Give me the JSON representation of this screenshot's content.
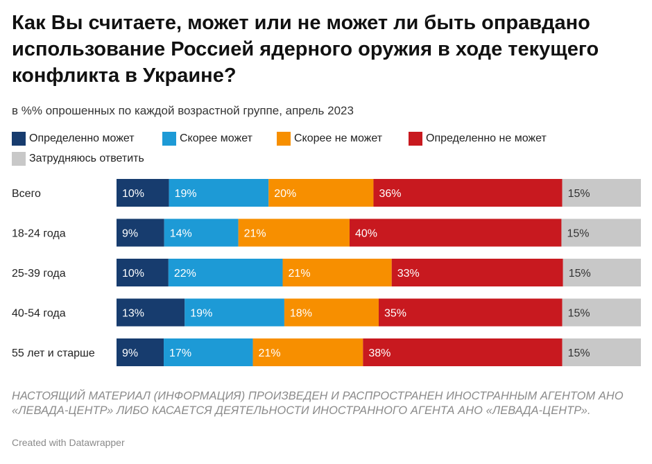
{
  "header": {
    "title": "Как Вы считаете, может или не может ли быть оправдано использование Россией ядерного оружия в ходе текущего конфликта в Украине?",
    "subtitle": "в %% опрошенных по каждой возрастной группе, апрель 2023"
  },
  "footer": {
    "notes": "НАСТОЯЩИЙ МАТЕРИАЛ (ИНФОРМАЦИЯ) ПРОИЗВЕДЕН И РАСПРОСТРАНЕН ИНОСТРАННЫМ АГЕНТОМ АНО «ЛЕВАДА-ЦЕНТР» ЛИБО КАСАЕТСЯ ДЕЯТЕЛЬНОСТИ ИНОСТРАННОГО АГЕНТА АНО «ЛЕВАДА-ЦЕНТР».",
    "byline": "Created with Datawrapper"
  },
  "chart_data": {
    "type": "bar",
    "orientation": "horizontal",
    "stacked": true,
    "title": "Как Вы считаете, может или не может ли быть оправдано использование Россией ядерного оружия в ходе текущего конфликта в Украине?",
    "subtitle": "в %% опрошенных по каждой возрастной группе, апрель 2023",
    "unit": "%",
    "legend_position": "top",
    "grid": false,
    "categories": [
      "Всего",
      "18-24 года",
      "25-39 года",
      "40-54 года",
      "55 лет и старше"
    ],
    "series": [
      {
        "name": "Определенно может",
        "color": "#173c6e",
        "label_color": "#ffffff",
        "values": [
          10,
          9,
          10,
          13,
          9
        ]
      },
      {
        "name": "Скорее может",
        "color": "#1d9ad6",
        "label_color": "#ffffff",
        "values": [
          19,
          14,
          22,
          19,
          17
        ]
      },
      {
        "name": "Скорее не может",
        "color": "#f78f00",
        "label_color": "#ffffff",
        "values": [
          20,
          21,
          21,
          18,
          21
        ]
      },
      {
        "name": "Определенно не может",
        "color": "#c8191f",
        "label_color": "#ffffff",
        "values": [
          36,
          40,
          33,
          35,
          38
        ]
      },
      {
        "name": "Затрудняюсь ответить",
        "color": "#c8c8c8",
        "label_color": "#333333",
        "values": [
          15,
          15,
          15,
          15,
          15
        ]
      }
    ]
  }
}
